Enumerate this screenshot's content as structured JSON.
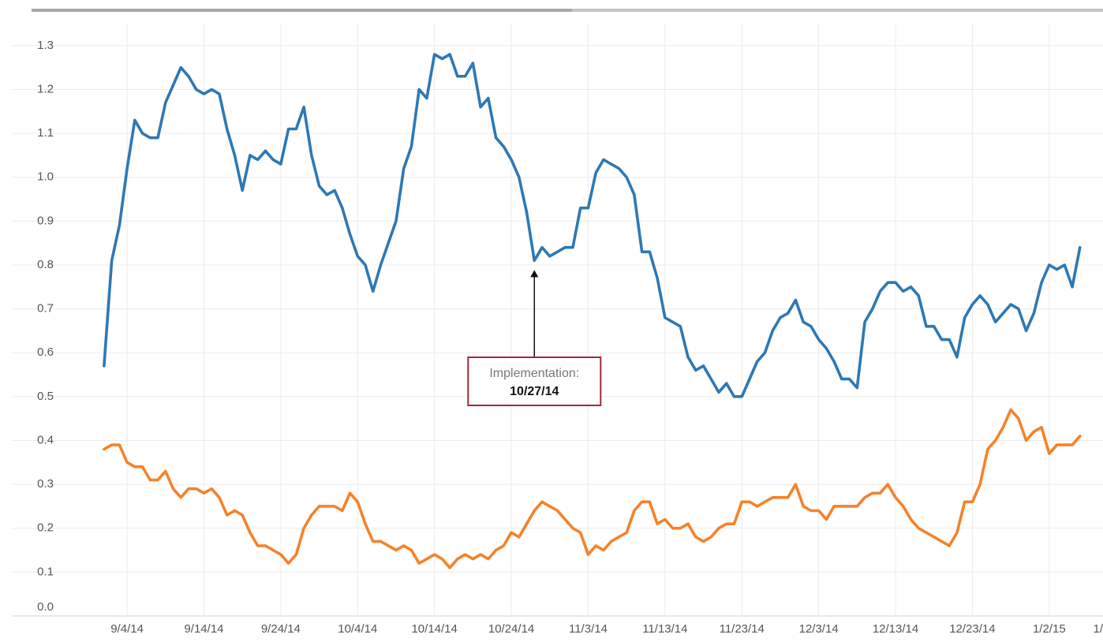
{
  "chart_data": {
    "type": "line",
    "x": [
      "2014-09-01",
      "2014-09-02",
      "2014-09-03",
      "2014-09-04",
      "2014-09-05",
      "2014-09-06",
      "2014-09-07",
      "2014-09-08",
      "2014-09-09",
      "2014-09-10",
      "2014-09-11",
      "2014-09-12",
      "2014-09-13",
      "2014-09-14",
      "2014-09-15",
      "2014-09-16",
      "2014-09-17",
      "2014-09-18",
      "2014-09-19",
      "2014-09-20",
      "2014-09-21",
      "2014-09-22",
      "2014-09-23",
      "2014-09-24",
      "2014-09-25",
      "2014-09-26",
      "2014-09-27",
      "2014-09-28",
      "2014-09-29",
      "2014-09-30",
      "2014-10-01",
      "2014-10-02",
      "2014-10-03",
      "2014-10-04",
      "2014-10-05",
      "2014-10-06",
      "2014-10-07",
      "2014-10-08",
      "2014-10-09",
      "2014-10-10",
      "2014-10-11",
      "2014-10-12",
      "2014-10-13",
      "2014-10-14",
      "2014-10-15",
      "2014-10-16",
      "2014-10-17",
      "2014-10-18",
      "2014-10-19",
      "2014-10-20",
      "2014-10-21",
      "2014-10-22",
      "2014-10-23",
      "2014-10-24",
      "2014-10-25",
      "2014-10-26",
      "2014-10-27",
      "2014-10-28",
      "2014-10-29",
      "2014-10-30",
      "2014-10-31",
      "2014-11-01",
      "2014-11-02",
      "2014-11-03",
      "2014-11-04",
      "2014-11-05",
      "2014-11-06",
      "2014-11-07",
      "2014-11-08",
      "2014-11-09",
      "2014-11-10",
      "2014-11-11",
      "2014-11-12",
      "2014-11-13",
      "2014-11-14",
      "2014-11-15",
      "2014-11-16",
      "2014-11-17",
      "2014-11-18",
      "2014-11-19",
      "2014-11-20",
      "2014-11-21",
      "2014-11-22",
      "2014-11-23",
      "2014-11-24",
      "2014-11-25",
      "2014-11-26",
      "2014-11-27",
      "2014-11-28",
      "2014-11-29",
      "2014-11-30",
      "2014-12-01",
      "2014-12-02",
      "2014-12-03",
      "2014-12-04",
      "2014-12-05",
      "2014-12-06",
      "2014-12-07",
      "2014-12-08",
      "2014-12-09",
      "2014-12-10",
      "2014-12-11",
      "2014-12-12",
      "2014-12-13",
      "2014-12-14",
      "2014-12-15",
      "2014-12-16",
      "2014-12-17",
      "2014-12-18",
      "2014-12-19",
      "2014-12-20",
      "2014-12-21",
      "2014-12-22",
      "2014-12-23",
      "2014-12-24",
      "2014-12-25",
      "2014-12-26",
      "2014-12-27",
      "2014-12-28",
      "2014-12-29",
      "2014-12-30",
      "2014-12-31",
      "2015-01-01",
      "2015-01-02",
      "2015-01-03",
      "2015-01-04",
      "2015-01-05",
      "2015-01-06"
    ],
    "series": [
      {
        "color": "#2e78b4",
        "values": [
          0.57,
          0.81,
          0.89,
          1.02,
          1.13,
          1.1,
          1.09,
          1.09,
          1.17,
          1.21,
          1.25,
          1.23,
          1.2,
          1.19,
          1.2,
          1.19,
          1.11,
          1.05,
          0.97,
          1.05,
          1.04,
          1.06,
          1.04,
          1.03,
          1.11,
          1.11,
          1.16,
          1.05,
          0.98,
          0.96,
          0.97,
          0.93,
          0.87,
          0.82,
          0.8,
          0.74,
          0.8,
          0.85,
          0.9,
          1.02,
          1.07,
          1.2,
          1.18,
          1.28,
          1.27,
          1.28,
          1.23,
          1.23,
          1.26,
          1.16,
          1.18,
          1.09,
          1.07,
          1.04,
          1.0,
          0.92,
          0.81,
          0.84,
          0.82,
          0.83,
          0.84,
          0.84,
          0.93,
          0.93,
          1.01,
          1.04,
          1.03,
          1.02,
          1.0,
          0.96,
          0.83,
          0.83,
          0.77,
          0.68,
          0.67,
          0.66,
          0.59,
          0.56,
          0.57,
          0.54,
          0.51,
          0.53,
          0.5,
          0.5,
          0.54,
          0.58,
          0.6,
          0.65,
          0.68,
          0.69,
          0.72,
          0.67,
          0.66,
          0.63,
          0.61,
          0.58,
          0.54,
          0.54,
          0.52,
          0.67,
          0.7,
          0.74,
          0.76,
          0.76,
          0.74,
          0.75,
          0.73,
          0.66,
          0.66,
          0.63,
          0.63,
          0.59,
          0.68,
          0.71,
          0.73,
          0.71,
          0.67,
          0.69,
          0.71,
          0.7,
          0.65,
          0.69,
          0.76,
          0.8,
          0.79,
          0.8,
          0.75,
          0.84
        ]
      },
      {
        "color": "#f5822a",
        "values": [
          0.38,
          0.39,
          0.39,
          0.35,
          0.34,
          0.34,
          0.31,
          0.31,
          0.33,
          0.29,
          0.27,
          0.29,
          0.29,
          0.28,
          0.29,
          0.27,
          0.23,
          0.24,
          0.23,
          0.19,
          0.16,
          0.16,
          0.15,
          0.14,
          0.12,
          0.14,
          0.2,
          0.23,
          0.25,
          0.25,
          0.25,
          0.24,
          0.28,
          0.26,
          0.21,
          0.17,
          0.17,
          0.16,
          0.15,
          0.16,
          0.15,
          0.12,
          0.13,
          0.14,
          0.13,
          0.11,
          0.13,
          0.14,
          0.13,
          0.14,
          0.13,
          0.15,
          0.16,
          0.19,
          0.18,
          0.21,
          0.24,
          0.26,
          0.25,
          0.24,
          0.22,
          0.2,
          0.19,
          0.14,
          0.16,
          0.15,
          0.17,
          0.18,
          0.19,
          0.24,
          0.26,
          0.26,
          0.21,
          0.22,
          0.2,
          0.2,
          0.21,
          0.18,
          0.17,
          0.18,
          0.2,
          0.21,
          0.21,
          0.26,
          0.26,
          0.25,
          0.26,
          0.27,
          0.27,
          0.27,
          0.3,
          0.25,
          0.24,
          0.24,
          0.22,
          0.25,
          0.25,
          0.25,
          0.25,
          0.27,
          0.28,
          0.28,
          0.3,
          0.27,
          0.25,
          0.22,
          0.2,
          0.19,
          0.18,
          0.17,
          0.16,
          0.19,
          0.26,
          0.26,
          0.3,
          0.38,
          0.4,
          0.43,
          0.47,
          0.45,
          0.4,
          0.42,
          0.43,
          0.37,
          0.39,
          0.39,
          0.39,
          0.41
        ]
      }
    ],
    "xlim": [
      "2014-08-20",
      "2015-01-09"
    ],
    "xticks": [
      {
        "value": "2014-09-04",
        "label": "9/4/14"
      },
      {
        "value": "2014-09-14",
        "label": "9/14/14"
      },
      {
        "value": "2014-09-24",
        "label": "9/24/14"
      },
      {
        "value": "2014-10-04",
        "label": "10/4/14"
      },
      {
        "value": "2014-10-14",
        "label": "10/14/14"
      },
      {
        "value": "2014-10-24",
        "label": "10/24/14"
      },
      {
        "value": "2014-11-03",
        "label": "11/3/14"
      },
      {
        "value": "2014-11-13",
        "label": "11/13/14"
      },
      {
        "value": "2014-11-23",
        "label": "11/23/14"
      },
      {
        "value": "2014-12-03",
        "label": "12/3/14"
      },
      {
        "value": "2014-12-13",
        "label": "12/13/14"
      },
      {
        "value": "2014-12-23",
        "label": "12/23/14"
      },
      {
        "value": "2015-01-02",
        "label": "1/2/15"
      },
      {
        "value": "2015-01-12",
        "label": "1/"
      }
    ],
    "ylim": [
      0,
      1.35
    ],
    "yticks": [
      {
        "value": 0,
        "label": "0.0"
      },
      0.1,
      0.2,
      0.3,
      0.4,
      0.5,
      0.6,
      0.7,
      0.8,
      0.9,
      {
        "value": 1,
        "label": "1.0"
      },
      1.1,
      1.2,
      1.3
    ],
    "grid": true,
    "annotation": {
      "x": "2014-10-27",
      "series": 0,
      "label": "Implementation:",
      "date": "10/27/14"
    }
  }
}
